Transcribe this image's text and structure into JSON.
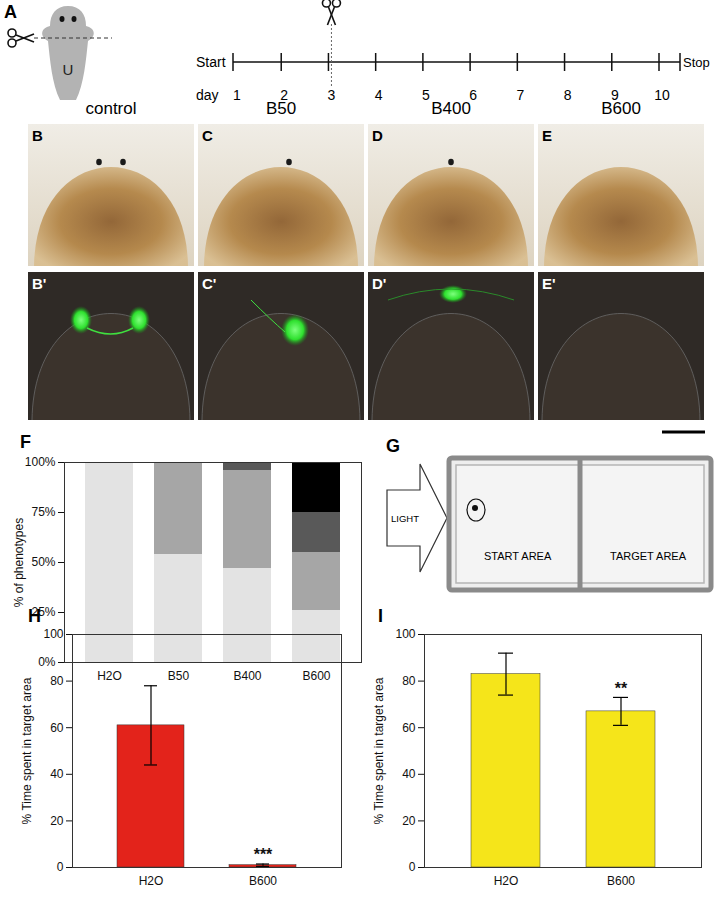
{
  "figure": {
    "A": {
      "panel": "A",
      "worm_label": "U",
      "timeline": {
        "start": "Start",
        "stop": "Stop",
        "day_label": "day",
        "days": [
          1,
          2,
          3,
          4,
          5,
          6,
          7,
          8,
          9,
          10
        ],
        "cut_day": 3
      }
    },
    "photos": {
      "columns": [
        "control",
        "B50",
        "B400",
        "B600"
      ],
      "top_panels": [
        "B",
        "C",
        "D",
        "E"
      ],
      "bottom_panels": [
        "B'",
        "C'",
        "D'",
        "E'"
      ]
    },
    "G": {
      "panel": "G",
      "light": "LIGHT",
      "start_area": "START AREA",
      "target_area": "TARGET AREA"
    }
  },
  "chart_data": [
    {
      "panel": "F",
      "type": "bar",
      "stacked": true,
      "categories": [
        "H2O",
        "B50",
        "B400",
        "B600"
      ],
      "ylabel": "% of phenotypes",
      "ylim": [
        0,
        100
      ],
      "yticks": [
        {
          "value": 0,
          "label": "0%"
        },
        {
          "value": 25,
          "label": "25%"
        },
        {
          "value": 50,
          "label": "50%"
        },
        {
          "value": 75,
          "label": "75%"
        },
        {
          "value": 100,
          "label": "100%"
        }
      ],
      "series": [
        {
          "color": "#e3e3e3",
          "values": [
            100,
            54,
            47,
            26
          ]
        },
        {
          "color": "#a6a6a6",
          "values": [
            0,
            46,
            49,
            29
          ]
        },
        {
          "color": "#595959",
          "values": [
            0,
            0,
            4,
            20
          ]
        },
        {
          "color": "#000000",
          "values": [
            0,
            0,
            0,
            25
          ]
        }
      ]
    },
    {
      "panel": "H",
      "type": "bar",
      "categories": [
        "H2O",
        "B600"
      ],
      "values": [
        61,
        1
      ],
      "errors": [
        17,
        0.5
      ],
      "color": "#e3231b",
      "ylabel": "% Time spent in target area",
      "ylim": [
        0,
        100
      ],
      "yticks": [
        0,
        20,
        40,
        60,
        80,
        100
      ],
      "annotations": [
        {
          "category": "B600",
          "text": "***"
        }
      ]
    },
    {
      "panel": "I",
      "type": "bar",
      "categories": [
        "H2O",
        "B600"
      ],
      "values": [
        83,
        67
      ],
      "errors": [
        9,
        6
      ],
      "color": "#f5e51a",
      "ylabel": "% Time spent in target area",
      "ylim": [
        0,
        100
      ],
      "yticks": [
        0,
        20,
        40,
        60,
        80,
        100
      ],
      "annotations": [
        {
          "category": "B600",
          "text": "**"
        }
      ]
    }
  ]
}
